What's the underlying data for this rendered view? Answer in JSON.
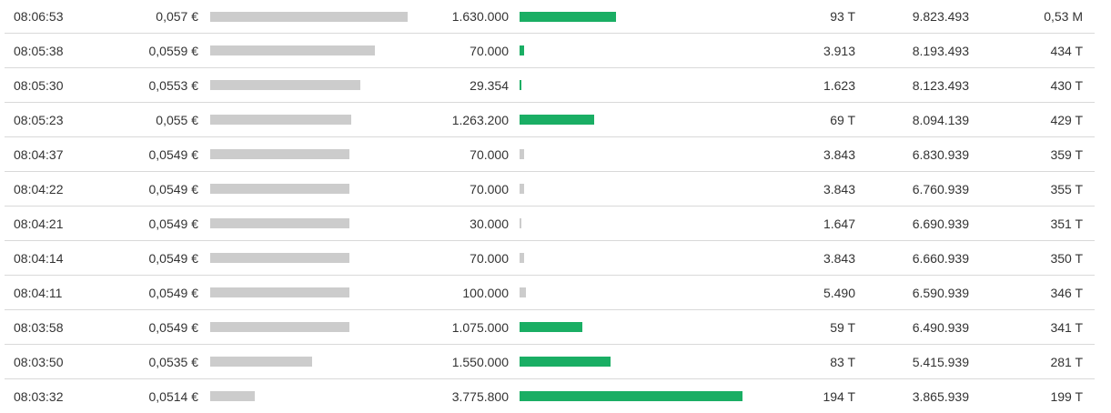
{
  "colors": {
    "price_bar": "#cccccc",
    "volume_bar_large": "#1aae64",
    "volume_bar_small": "#cccccc",
    "row_border": "#d9d9d9"
  },
  "trades": [
    {
      "time": "08:06:53",
      "price": "0,057 €",
      "price_level": 1.0,
      "volume": "1.630.000",
      "volume_level": 0.432,
      "volume_bar": "green",
      "turnover": "93 T",
      "cum_volume": "9.823.493",
      "cum_turnover": "0,53 M"
    },
    {
      "time": "08:05:38",
      "price": "0,0559 €",
      "price_level": 0.834,
      "volume": "70.000",
      "volume_level": 0.02,
      "volume_bar": "green",
      "turnover": "3.913",
      "cum_volume": "8.193.493",
      "cum_turnover": "434 T"
    },
    {
      "time": "08:05:30",
      "price": "0,0553 €",
      "price_level": 0.762,
      "volume": "29.354",
      "volume_level": 0.008,
      "volume_bar": "green",
      "turnover": "1.623",
      "cum_volume": "8.123.493",
      "cum_turnover": "430 T"
    },
    {
      "time": "08:05:23",
      "price": "0,055 €",
      "price_level": 0.715,
      "volume": "1.263.200",
      "volume_level": 0.335,
      "volume_bar": "green",
      "turnover": "69 T",
      "cum_volume": "8.094.139",
      "cum_turnover": "429 T"
    },
    {
      "time": "08:04:37",
      "price": "0,0549 €",
      "price_level": 0.706,
      "volume": "70.000",
      "volume_level": 0.02,
      "volume_bar": "grey",
      "turnover": "3.843",
      "cum_volume": "6.830.939",
      "cum_turnover": "359 T"
    },
    {
      "time": "08:04:22",
      "price": "0,0549 €",
      "price_level": 0.706,
      "volume": "70.000",
      "volume_level": 0.02,
      "volume_bar": "grey",
      "turnover": "3.843",
      "cum_volume": "6.760.939",
      "cum_turnover": "355 T"
    },
    {
      "time": "08:04:21",
      "price": "0,0549 €",
      "price_level": 0.706,
      "volume": "30.000",
      "volume_level": 0.008,
      "volume_bar": "grey",
      "turnover": "1.647",
      "cum_volume": "6.690.939",
      "cum_turnover": "351 T"
    },
    {
      "time": "08:04:14",
      "price": "0,0549 €",
      "price_level": 0.706,
      "volume": "70.000",
      "volume_level": 0.02,
      "volume_bar": "grey",
      "turnover": "3.843",
      "cum_volume": "6.660.939",
      "cum_turnover": "350 T"
    },
    {
      "time": "08:04:11",
      "price": "0,0549 €",
      "price_level": 0.706,
      "volume": "100.000",
      "volume_level": 0.03,
      "volume_bar": "grey",
      "turnover": "5.490",
      "cum_volume": "6.590.939",
      "cum_turnover": "346 T"
    },
    {
      "time": "08:03:58",
      "price": "0,0549 €",
      "price_level": 0.706,
      "volume": "1.075.000",
      "volume_level": 0.28,
      "volume_bar": "green",
      "turnover": "59 T",
      "cum_volume": "6.490.939",
      "cum_turnover": "341 T"
    },
    {
      "time": "08:03:50",
      "price": "0,0535 €",
      "price_level": 0.514,
      "volume": "1.550.000",
      "volume_level": 0.41,
      "volume_bar": "green",
      "turnover": "83 T",
      "cum_volume": "5.415.939",
      "cum_turnover": "281 T"
    },
    {
      "time": "08:03:32",
      "price": "0,0514 €",
      "price_level": 0.225,
      "volume": "3.775.800",
      "volume_level": 1.0,
      "volume_bar": "green",
      "turnover": "194 T",
      "cum_volume": "3.865.939",
      "cum_turnover": "199 T"
    }
  ]
}
